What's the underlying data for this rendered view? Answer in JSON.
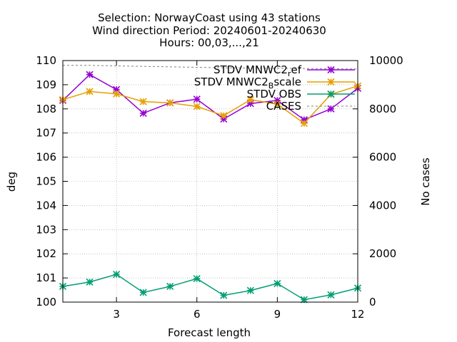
{
  "chart_data": {
    "type": "line",
    "title_lines": [
      "Selection: NorwayCoast using    43 stations",
      "Wind direction   Period: 20240601-20240630",
      "Hours: 00,03,...,21"
    ],
    "xlabel": "Forecast length",
    "ylabel": "deg",
    "y2label": "No cases",
    "xlim": [
      1,
      12
    ],
    "ylim": [
      100,
      110
    ],
    "y2lim": [
      0,
      10000
    ],
    "x_ticks": [
      3,
      6,
      9,
      12
    ],
    "y_ticks": [
      100,
      101,
      102,
      103,
      104,
      105,
      106,
      107,
      108,
      109,
      110
    ],
    "y2_ticks": [
      0,
      2000,
      4000,
      6000,
      8000,
      10000
    ],
    "grid": true,
    "legend_position": "top-right",
    "x": [
      1,
      2,
      3,
      4,
      5,
      6,
      7,
      8,
      9,
      10,
      11,
      12
    ],
    "series": [
      {
        "name": "STDV MNWC2_ref",
        "legend_main": "STDV MNWC2",
        "legend_sub": "r",
        "legend_tail": "ef",
        "color": "#9400d3",
        "marker": "star",
        "axis": "y",
        "values": [
          108.35,
          109.42,
          108.8,
          107.82,
          108.25,
          108.4,
          107.58,
          108.22,
          108.35,
          107.55,
          108.0,
          108.85
        ]
      },
      {
        "name": "STDV MNWC2_Bscale",
        "legend_main": "STDV MNWC2",
        "legend_sub": "B",
        "legend_tail": "scale",
        "color": "#e69f00",
        "marker": "star",
        "axis": "y",
        "values": [
          108.38,
          108.72,
          108.62,
          108.3,
          108.25,
          108.1,
          107.72,
          108.38,
          108.2,
          107.4,
          108.6,
          108.95
        ]
      },
      {
        "name": "STDV OBS",
        "legend_main": "STDV OBS",
        "legend_sub": "",
        "legend_tail": "",
        "color": "#009e73",
        "marker": "star",
        "axis": "y",
        "values": [
          100.65,
          100.83,
          101.15,
          100.4,
          100.65,
          100.97,
          100.28,
          100.48,
          100.77,
          100.1,
          100.3,
          100.58
        ]
      },
      {
        "name": "CASES",
        "legend_main": "CASES",
        "legend_sub": "",
        "legend_tail": "",
        "color": "#808080",
        "marker": "none",
        "dashed": true,
        "axis": "y2",
        "values": [
          9800,
          9800,
          9780,
          9760,
          9740,
          9720,
          9700,
          9690,
          9680,
          9670,
          9660,
          9650
        ]
      }
    ]
  }
}
